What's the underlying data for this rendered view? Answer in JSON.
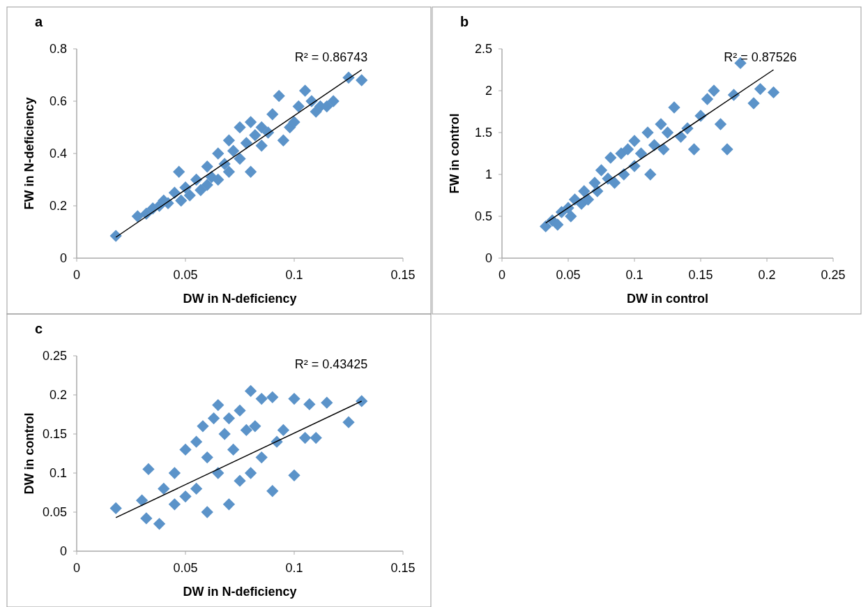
{
  "chart_data": [
    {
      "type": "scatter",
      "title": "a",
      "xlabel": "DW in N-deficiency",
      "ylabel": "FW in N-deficiency",
      "grid": false,
      "xlim": [
        0,
        0.15
      ],
      "xticks": [
        0,
        0.05,
        0.1,
        0.15
      ],
      "ylim": [
        0,
        0.8
      ],
      "yticks": [
        0,
        0.2,
        0.4,
        0.6,
        0.8
      ],
      "annotations": [
        "R² = 0.86743"
      ],
      "series": [
        {
          "marker": "diamond",
          "color": "#5b93c9",
          "x": [
            0.018,
            0.028,
            0.032,
            0.035,
            0.038,
            0.04,
            0.042,
            0.045,
            0.047,
            0.048,
            0.05,
            0.052,
            0.055,
            0.057,
            0.06,
            0.06,
            0.062,
            0.065,
            0.065,
            0.068,
            0.07,
            0.07,
            0.072,
            0.075,
            0.075,
            0.078,
            0.08,
            0.08,
            0.082,
            0.085,
            0.085,
            0.088,
            0.09,
            0.093,
            0.095,
            0.098,
            0.1,
            0.102,
            0.105,
            0.108,
            0.11,
            0.112,
            0.115,
            0.118,
            0.125,
            0.131
          ],
          "values": [
            0.085,
            0.16,
            0.17,
            0.19,
            0.2,
            0.22,
            0.21,
            0.25,
            0.33,
            0.22,
            0.27,
            0.24,
            0.3,
            0.26,
            0.35,
            0.28,
            0.31,
            0.4,
            0.3,
            0.36,
            0.45,
            0.33,
            0.41,
            0.5,
            0.38,
            0.44,
            0.52,
            0.33,
            0.47,
            0.5,
            0.43,
            0.48,
            0.55,
            0.62,
            0.45,
            0.5,
            0.52,
            0.58,
            0.64,
            0.6,
            0.56,
            0.58,
            0.58,
            0.6,
            0.69,
            0.68
          ]
        },
        {
          "type": "line",
          "color": "#000000",
          "x": [
            0.018,
            0.131
          ],
          "values": [
            0.08,
            0.72
          ]
        }
      ]
    },
    {
      "type": "scatter",
      "title": "b",
      "xlabel": "DW in control",
      "ylabel": "FW in control",
      "grid": false,
      "xlim": [
        0,
        0.25
      ],
      "xticks": [
        0,
        0.05,
        0.1,
        0.15,
        0.2,
        0.25
      ],
      "ylim": [
        0,
        2.5
      ],
      "yticks": [
        0,
        0.5,
        1,
        1.5,
        2,
        2.5
      ],
      "annotations": [
        "R² = 0.87526"
      ],
      "series": [
        {
          "marker": "diamond",
          "color": "#5b93c9",
          "x": [
            0.033,
            0.038,
            0.042,
            0.045,
            0.05,
            0.052,
            0.055,
            0.06,
            0.062,
            0.065,
            0.07,
            0.072,
            0.075,
            0.08,
            0.082,
            0.085,
            0.09,
            0.092,
            0.095,
            0.1,
            0.1,
            0.105,
            0.11,
            0.112,
            0.115,
            0.12,
            0.122,
            0.125,
            0.13,
            0.135,
            0.14,
            0.145,
            0.15,
            0.155,
            0.16,
            0.165,
            0.17,
            0.175,
            0.18,
            0.19,
            0.195,
            0.205
          ],
          "values": [
            0.38,
            0.45,
            0.4,
            0.55,
            0.6,
            0.5,
            0.7,
            0.65,
            0.8,
            0.7,
            0.9,
            0.8,
            1.05,
            0.95,
            1.2,
            0.9,
            1.25,
            1.0,
            1.3,
            1.4,
            1.1,
            1.25,
            1.5,
            1.0,
            1.35,
            1.6,
            1.3,
            1.5,
            1.8,
            1.45,
            1.55,
            1.3,
            1.7,
            1.9,
            2.0,
            1.6,
            1.3,
            1.95,
            2.33,
            1.85,
            2.02,
            1.98
          ]
        },
        {
          "type": "line",
          "color": "#000000",
          "x": [
            0.033,
            0.205
          ],
          "values": [
            0.42,
            2.25
          ]
        }
      ]
    },
    {
      "type": "scatter",
      "title": "c",
      "xlabel": "DW in N-deficiency",
      "ylabel": "DW in control",
      "grid": false,
      "xlim": [
        0,
        0.15
      ],
      "xticks": [
        0,
        0.05,
        0.1,
        0.15
      ],
      "ylim": [
        0,
        0.25
      ],
      "yticks": [
        0,
        0.05,
        0.1,
        0.15,
        0.2,
        0.25
      ],
      "annotations": [
        "R² = 0.43425"
      ],
      "series": [
        {
          "marker": "diamond",
          "color": "#5b93c9",
          "x": [
            0.018,
            0.03,
            0.033,
            0.032,
            0.038,
            0.04,
            0.045,
            0.045,
            0.05,
            0.05,
            0.055,
            0.055,
            0.058,
            0.06,
            0.06,
            0.063,
            0.065,
            0.065,
            0.068,
            0.07,
            0.07,
            0.072,
            0.075,
            0.075,
            0.078,
            0.08,
            0.08,
            0.082,
            0.085,
            0.085,
            0.09,
            0.09,
            0.092,
            0.095,
            0.1,
            0.1,
            0.105,
            0.107,
            0.11,
            0.115,
            0.125,
            0.131
          ],
          "values": [
            0.055,
            0.065,
            0.105,
            0.042,
            0.035,
            0.08,
            0.1,
            0.06,
            0.13,
            0.07,
            0.14,
            0.08,
            0.16,
            0.05,
            0.12,
            0.17,
            0.187,
            0.1,
            0.15,
            0.17,
            0.06,
            0.13,
            0.18,
            0.09,
            0.155,
            0.205,
            0.1,
            0.16,
            0.195,
            0.12,
            0.197,
            0.077,
            0.14,
            0.155,
            0.195,
            0.097,
            0.145,
            0.188,
            0.145,
            0.19,
            0.165,
            0.192
          ]
        },
        {
          "type": "line",
          "color": "#000000",
          "x": [
            0.018,
            0.131
          ],
          "values": [
            0.043,
            0.192
          ]
        }
      ]
    }
  ]
}
